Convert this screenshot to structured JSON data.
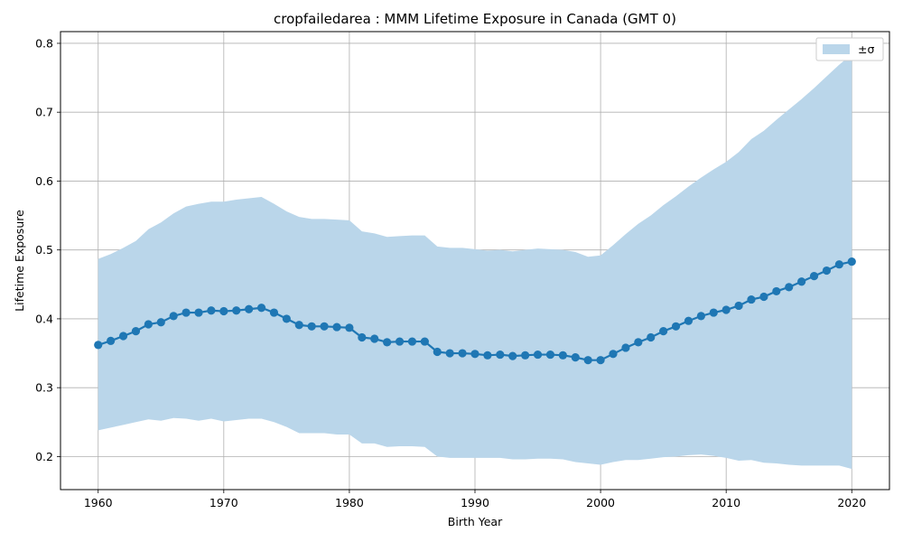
{
  "chart_data": {
    "type": "line",
    "title": "cropfailedarea : MMM Lifetime Exposure in Canada (GMT 0)",
    "xlabel": "Birth Year",
    "ylabel": "Lifetime Exposure",
    "xlim": [
      1957,
      2023
    ],
    "ylim": [
      0.152,
      0.817
    ],
    "x_ticks": [
      1960,
      1970,
      1980,
      1990,
      2000,
      2010,
      2020
    ],
    "y_ticks": [
      0.2,
      0.3,
      0.4,
      0.5,
      0.6,
      0.7,
      0.8
    ],
    "grid": true,
    "legend": {
      "placement": "top-right",
      "entries": [
        "±σ"
      ]
    },
    "colors": {
      "line": "#1f77b4",
      "band": "#bad6ea"
    },
    "x": [
      1960,
      1961,
      1962,
      1963,
      1964,
      1965,
      1966,
      1967,
      1968,
      1969,
      1970,
      1971,
      1972,
      1973,
      1974,
      1975,
      1976,
      1977,
      1978,
      1979,
      1980,
      1981,
      1982,
      1983,
      1984,
      1985,
      1986,
      1987,
      1988,
      1989,
      1990,
      1991,
      1992,
      1993,
      1994,
      1995,
      1996,
      1997,
      1998,
      1999,
      2000,
      2001,
      2002,
      2003,
      2004,
      2005,
      2006,
      2007,
      2008,
      2009,
      2010,
      2011,
      2012,
      2013,
      2014,
      2015,
      2016,
      2017,
      2018,
      2019,
      2020
    ],
    "series": [
      {
        "values": [
          0.362,
          0.368,
          0.375,
          0.382,
          0.392,
          0.395,
          0.404,
          0.409,
          0.409,
          0.412,
          0.411,
          0.412,
          0.414,
          0.416,
          0.409,
          0.4,
          0.391,
          0.389,
          0.389,
          0.388,
          0.387,
          0.373,
          0.371,
          0.366,
          0.367,
          0.367,
          0.367,
          0.352,
          0.35,
          0.35,
          0.349,
          0.347,
          0.348,
          0.346,
          0.347,
          0.348,
          0.348,
          0.347,
          0.344,
          0.34,
          0.34,
          0.349,
          0.358,
          0.366,
          0.373,
          0.382,
          0.389,
          0.397,
          0.404,
          0.409,
          0.413,
          0.419,
          0.428,
          0.432,
          0.44,
          0.446,
          0.454,
          0.462,
          0.47,
          0.479,
          0.483
        ],
        "upper": [
          0.487,
          0.494,
          0.503,
          0.513,
          0.53,
          0.54,
          0.553,
          0.563,
          0.567,
          0.57,
          0.57,
          0.573,
          0.575,
          0.577,
          0.567,
          0.556,
          0.548,
          0.545,
          0.545,
          0.544,
          0.543,
          0.527,
          0.524,
          0.519,
          0.52,
          0.521,
          0.521,
          0.505,
          0.503,
          0.503,
          0.501,
          0.499,
          0.5,
          0.498,
          0.5,
          0.502,
          0.501,
          0.5,
          0.497,
          0.49,
          0.492,
          0.507,
          0.523,
          0.538,
          0.55,
          0.565,
          0.578,
          0.592,
          0.605,
          0.617,
          0.628,
          0.642,
          0.661,
          0.673,
          0.689,
          0.704,
          0.719,
          0.735,
          0.752,
          0.769,
          0.784
        ],
        "lower": [
          0.238,
          0.242,
          0.246,
          0.25,
          0.254,
          0.252,
          0.256,
          0.255,
          0.252,
          0.255,
          0.251,
          0.253,
          0.255,
          0.255,
          0.25,
          0.243,
          0.234,
          0.234,
          0.234,
          0.232,
          0.232,
          0.219,
          0.219,
          0.214,
          0.215,
          0.215,
          0.214,
          0.2,
          0.198,
          0.198,
          0.198,
          0.198,
          0.198,
          0.196,
          0.196,
          0.197,
          0.197,
          0.196,
          0.192,
          0.19,
          0.188,
          0.192,
          0.195,
          0.195,
          0.197,
          0.199,
          0.2,
          0.202,
          0.203,
          0.201,
          0.198,
          0.194,
          0.195,
          0.191,
          0.19,
          0.188,
          0.187,
          0.187,
          0.187,
          0.187,
          0.182
        ]
      }
    ]
  }
}
